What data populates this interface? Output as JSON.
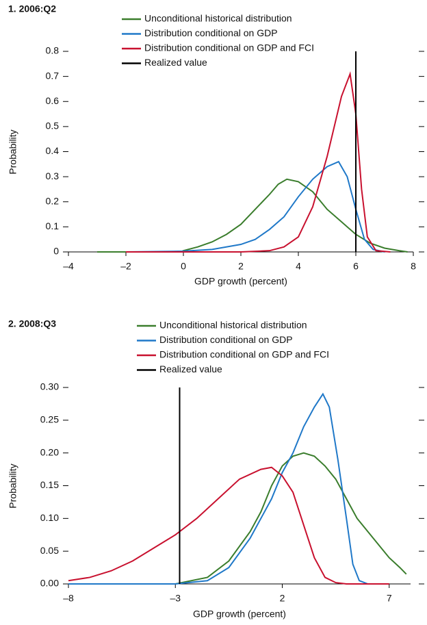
{
  "chart_data": [
    {
      "type": "line",
      "title": "1. 2006:Q2",
      "x_label": "GDP growth (percent)",
      "y_label": "Probability",
      "xlim": [
        -4,
        8
      ],
      "ylim": [
        0,
        0.8
      ],
      "xticks": [
        {
          "value": -4,
          "label": "–4"
        },
        {
          "value": -2,
          "label": "–2"
        },
        0,
        2,
        4,
        6,
        8
      ],
      "yticks": [
        0,
        0.1,
        0.2,
        0.3,
        0.4,
        0.5,
        0.6,
        0.7,
        0.8
      ],
      "series": [
        {
          "name": "Unconditional historical distribution",
          "color": "#3a7d2c",
          "x": [
            -3,
            -0.1,
            0,
            0.5,
            1,
            1.5,
            2,
            2.5,
            3,
            3.3,
            3.6,
            4,
            4.5,
            5,
            5.5,
            6,
            6.5,
            7,
            7.5,
            7.8
          ],
          "values": [
            0,
            0,
            0.005,
            0.02,
            0.04,
            0.07,
            0.11,
            0.17,
            0.23,
            0.27,
            0.29,
            0.28,
            0.24,
            0.17,
            0.12,
            0.07,
            0.035,
            0.015,
            0.005,
            0
          ]
        },
        {
          "name": "Distribution conditional on GDP",
          "color": "#1f78c8",
          "x": [
            -2,
            0,
            1,
            2,
            2.5,
            3,
            3.5,
            4,
            4.5,
            5,
            5.4,
            5.7,
            6,
            6.3,
            6.6,
            7
          ],
          "values": [
            0,
            0.003,
            0.01,
            0.03,
            0.05,
            0.09,
            0.14,
            0.22,
            0.29,
            0.34,
            0.36,
            0.3,
            0.17,
            0.05,
            0.01,
            0
          ]
        },
        {
          "name": "Distribution conditional on GDP and FCI",
          "color": "#c8102e",
          "x": [
            -2,
            2,
            3,
            3.5,
            4,
            4.5,
            5,
            5.5,
            5.8,
            6,
            6.2,
            6.4,
            6.7,
            7.2
          ],
          "values": [
            0,
            0,
            0.005,
            0.02,
            0.06,
            0.18,
            0.38,
            0.62,
            0.71,
            0.55,
            0.25,
            0.06,
            0.005,
            0
          ]
        },
        {
          "name": "Realized value",
          "color": "#000000",
          "x": [
            6,
            6
          ],
          "values": [
            0,
            0.8
          ]
        }
      ]
    },
    {
      "type": "line",
      "title": "2. 2008:Q3",
      "x_label": "GDP growth (percent)",
      "y_label": "Probability",
      "xlim": [
        -8,
        8
      ],
      "ylim": [
        0,
        0.3
      ],
      "xticks": [
        {
          "value": -8,
          "label": "–8"
        },
        {
          "value": -3,
          "label": "–3"
        },
        2,
        7
      ],
      "yticks": [
        {
          "value": 0,
          "label": "0.00"
        },
        {
          "value": 0.05,
          "label": "0.05"
        },
        {
          "value": 0.1,
          "label": "0.10"
        },
        {
          "value": 0.15,
          "label": "0.15"
        },
        {
          "value": 0.2,
          "label": "0.20"
        },
        {
          "value": 0.25,
          "label": "0.25"
        },
        {
          "value": 0.3,
          "label": "0.30"
        }
      ],
      "series": [
        {
          "name": "Unconditional historical distribution",
          "color": "#3a7d2c",
          "x": [
            -3,
            -1.5,
            -0.5,
            0.5,
            1,
            1.5,
            2,
            2.5,
            3,
            3.5,
            4,
            4.5,
            5,
            5.5,
            6,
            6.5,
            7,
            7.5,
            7.8
          ],
          "values": [
            0,
            0.01,
            0.035,
            0.08,
            0.11,
            0.15,
            0.18,
            0.195,
            0.2,
            0.195,
            0.18,
            0.16,
            0.13,
            0.1,
            0.08,
            0.06,
            0.04,
            0.025,
            0.015
          ]
        },
        {
          "name": "Distribution conditional on GDP",
          "color": "#1f78c8",
          "x": [
            -8,
            -3,
            -1.5,
            -0.5,
            0.5,
            1.5,
            2,
            2.5,
            3,
            3.5,
            3.9,
            4.2,
            4.6,
            5,
            5.3,
            5.6,
            6
          ],
          "values": [
            0,
            0,
            0.005,
            0.025,
            0.07,
            0.13,
            0.17,
            0.2,
            0.24,
            0.27,
            0.29,
            0.27,
            0.19,
            0.1,
            0.03,
            0.005,
            0
          ]
        },
        {
          "name": "Distribution conditional on GDP and FCI",
          "color": "#c8102e",
          "x": [
            -8,
            -7,
            -6,
            -5,
            -4,
            -3,
            -2,
            -1,
            0,
            1,
            1.5,
            2,
            2.5,
            3,
            3.5,
            4,
            4.5,
            5,
            7
          ],
          "values": [
            0.005,
            0.01,
            0.02,
            0.035,
            0.055,
            0.075,
            0.1,
            0.13,
            0.16,
            0.175,
            0.178,
            0.165,
            0.14,
            0.09,
            0.04,
            0.01,
            0.002,
            0,
            0
          ]
        },
        {
          "name": "Realized value",
          "color": "#000000",
          "x": [
            -2.8,
            -2.8
          ],
          "values": [
            0,
            0.3
          ]
        }
      ]
    }
  ]
}
